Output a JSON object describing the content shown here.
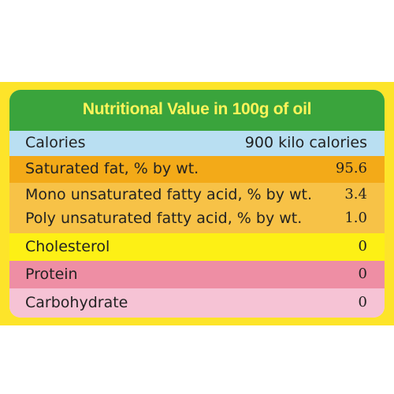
{
  "title": "Nutritional Value in 100g of oil",
  "rows": [
    {
      "label": "Calories",
      "value": "900 kilo calories"
    },
    {
      "label": "Saturated fat, % by wt.",
      "value": "95.6"
    },
    {
      "label": "Mono unsaturated fatty acid, % by wt.",
      "value": "3.4"
    },
    {
      "label": "Poly unsaturated fatty acid, % by wt.",
      "value": "1.0"
    },
    {
      "label": "Cholesterol",
      "value": "0"
    },
    {
      "label": "Protein",
      "value": "0"
    },
    {
      "label": "Carbohydrate",
      "value": "0"
    }
  ],
  "colors": {
    "frame": "#fde42a",
    "header": "#3aa43c",
    "title_text": "#fff45a",
    "calories": "#b9dff2",
    "saturated": "#f3aa18",
    "fatty_acids": "#f7c247",
    "cholesterol": "#fdf015",
    "protein": "#ee8ea4",
    "carbohydrate": "#f6c3d5"
  }
}
